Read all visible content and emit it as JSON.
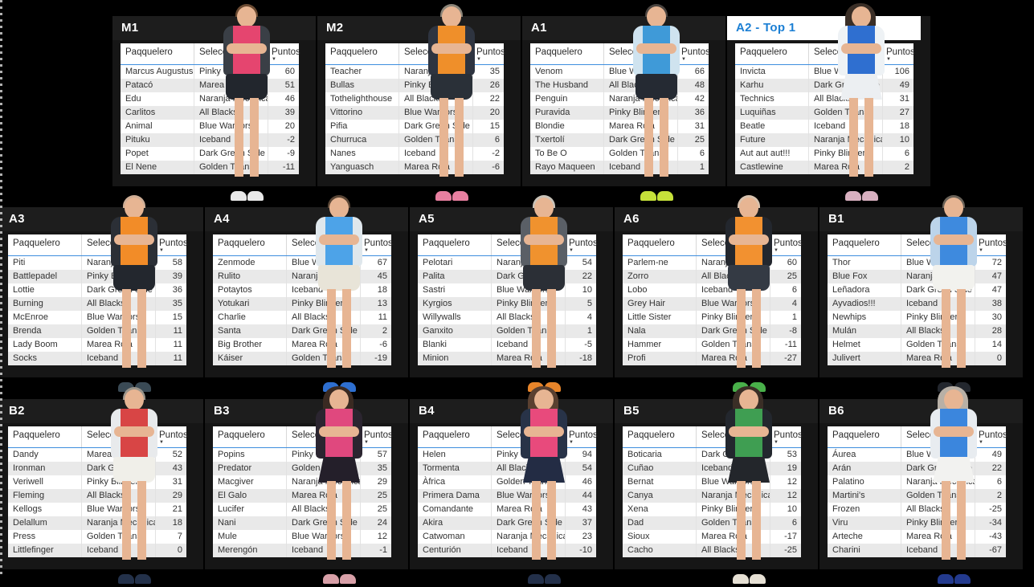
{
  "columns": [
    "Paqquelero",
    "Selección",
    "Puntos"
  ],
  "sort_icon": "▼",
  "colors": {
    "background": "#000000",
    "panel": "#161616",
    "highlight_title_bg": "#ffffff",
    "highlight_title_text": "#1b7fd4",
    "header_underline": "#3d8ede",
    "row_alt": "#e9e9e9"
  },
  "groups": [
    {
      "id": "M1",
      "title": "M1",
      "highlighted": false,
      "photo": {
        "shirt": "#e5456f",
        "sleeve": "#3a3f46",
        "bottom": "#22262d",
        "shoe": "#e9e9e9",
        "hair": "#6a4a32",
        "female": false
      },
      "rows": [
        [
          "Marcus Augustus",
          "Pinky Blinders",
          60
        ],
        [
          "Patacó",
          "Marea Roja",
          51
        ],
        [
          "Edu",
          "Naranja Mecánica",
          46
        ],
        [
          "Carlitos",
          "All Blacks",
          39
        ],
        [
          "Animal",
          "Blue Warriors",
          20
        ],
        [
          "Pituku",
          "Iceband",
          -2
        ],
        [
          "Popet",
          "Dark Green Side",
          -9
        ],
        [
          "El Nene",
          "Golden Titans",
          -11
        ]
      ]
    },
    {
      "id": "M2",
      "title": "M2",
      "highlighted": false,
      "photo": {
        "shirt": "#ef8f2a",
        "sleeve": "#2e3440",
        "bottom": "#2a3038",
        "shoe": "#e87fa0",
        "hair": "#8a8478",
        "female": false
      },
      "rows": [
        [
          "Teacher",
          "Naranja Mecánica",
          35
        ],
        [
          "Bullas",
          "Pinky Blinders",
          26
        ],
        [
          "Tothelighthouse",
          "All Blacks",
          22
        ],
        [
          "Vittorino",
          "Blue Warriors",
          20
        ],
        [
          "Pifia",
          "Dark Green Side",
          15
        ],
        [
          "Churruca",
          "Golden Titans",
          6
        ],
        [
          "Nanes",
          "Iceband",
          -2
        ],
        [
          "Yanguasch",
          "Marea Roja",
          -6
        ]
      ]
    },
    {
      "id": "A1",
      "title": "A1",
      "highlighted": false,
      "photo": {
        "shirt": "#3f9ad8",
        "sleeve": "#cfe3ef",
        "bottom": "#252a33",
        "shoe": "#c6e13a",
        "hair": "#4a4440",
        "female": false
      },
      "rows": [
        [
          "Venom",
          "Blue Warriors",
          66
        ],
        [
          "The Husband",
          "All Blacks",
          48
        ],
        [
          "Penguin",
          "Naranja Mecánica",
          42
        ],
        [
          "Puravida",
          "Pinky Blinders",
          36
        ],
        [
          "Blondie",
          "Marea Roja",
          31
        ],
        [
          "Txertolí",
          "Dark Green Side",
          25
        ],
        [
          "To Be O",
          "Golden Titans",
          6
        ],
        [
          "Rayo Maqueen",
          "Iceband",
          1
        ]
      ]
    },
    {
      "id": "A2",
      "title": "A2 - Top 1",
      "highlighted": true,
      "photo": {
        "shirt": "#2f6fd0",
        "sleeve": "#eef2f5",
        "bottom": "#eceff2",
        "shoe": "#d8b0c0",
        "hair": "#3a2e26",
        "female": true
      },
      "rows": [
        [
          "Invicta",
          "Blue Warriors",
          106
        ],
        [
          "Karhu",
          "Dark Green Side",
          49
        ],
        [
          "Technics",
          "All Blacks",
          31
        ],
        [
          "Luquiñas",
          "Golden Titans",
          27
        ],
        [
          "Beatle",
          "Iceband",
          18
        ],
        [
          "Future",
          "Naranja Mecánica",
          10
        ],
        [
          "Aut aut aut!!!",
          "Pinky Blinders",
          6
        ],
        [
          "Castlewine",
          "Marea Roja",
          2
        ]
      ]
    },
    {
      "id": "A3",
      "title": "A3",
      "highlighted": false,
      "photo": {
        "shirt": "#f28c28",
        "sleeve": "#2b2f36",
        "bottom": "#23272e",
        "shoe": "#3a4a55",
        "hair": "#cfae96",
        "female": false
      },
      "rows": [
        [
          "Piti",
          "Naranja Mecánica",
          58
        ],
        [
          "Battlepadel",
          "Pinky Blinders",
          39
        ],
        [
          "Lottie",
          "Dark Green Side",
          36
        ],
        [
          "Burning",
          "All Blacks",
          35
        ],
        [
          "McEnroe",
          "Blue Warriors",
          15
        ],
        [
          "Brenda",
          "Golden Titans",
          11
        ],
        [
          "Lady Boom",
          "Marea Roja",
          11
        ],
        [
          "Socks",
          "Iceband",
          11
        ]
      ]
    },
    {
      "id": "A4",
      "title": "A4",
      "highlighted": false,
      "photo": {
        "shirt": "#4da3e8",
        "sleeve": "#dfe7ec",
        "bottom": "#e8e4d8",
        "shoe": "#2e6fd0",
        "hair": "#5a4636",
        "female": false
      },
      "rows": [
        [
          "Zenmode",
          "Blue Warriors",
          67
        ],
        [
          "Rulito",
          "Naranja Mecánica",
          45
        ],
        [
          "Potaytos",
          "Iceband",
          18
        ],
        [
          "Yotukari",
          "Pinky Blinders",
          13
        ],
        [
          "Charlie",
          "All Blacks",
          11
        ],
        [
          "Santa",
          "Dark Green Side",
          2
        ],
        [
          "Big Brother",
          "Marea Roja",
          -6
        ],
        [
          "Káiser",
          "Golden Titans",
          -19
        ]
      ]
    },
    {
      "id": "A5",
      "title": "A5",
      "highlighted": false,
      "photo": {
        "shirt": "#f0922e",
        "sleeve": "#5a5f66",
        "bottom": "#2b2f36",
        "shoe": "#e8852a",
        "hair": "#c9c2b8",
        "female": false
      },
      "rows": [
        [
          "Pelotari",
          "Naranja Mecánica",
          54
        ],
        [
          "Palita",
          "Dark Green Side",
          22
        ],
        [
          "Sastri",
          "Blue Warriors",
          10
        ],
        [
          "Kyrgios",
          "Pinky Blinders",
          5
        ],
        [
          "Willywalls",
          "All Blacks",
          4
        ],
        [
          "Ganxito",
          "Golden Titans",
          1
        ],
        [
          "Blanki",
          "Iceband",
          -5
        ],
        [
          "Minion",
          "Marea Roja",
          -18
        ]
      ]
    },
    {
      "id": "A6",
      "title": "A6",
      "highlighted": false,
      "photo": {
        "shirt": "#f29130",
        "sleeve": "#23272e",
        "bottom": "#343a44",
        "shoe": "#49b04a",
        "hair": "#d8c2ae",
        "female": false
      },
      "rows": [
        [
          "Parlem-ne",
          "Naranja Mecánica",
          60
        ],
        [
          "Zorro",
          "All Blacks",
          25
        ],
        [
          "Lobo",
          "Iceband",
          6
        ],
        [
          "Grey Hair",
          "Blue Warriors",
          4
        ],
        [
          "Little Sister",
          "Pinky Blinders",
          1
        ],
        [
          "Nala",
          "Dark Green Side",
          -8
        ],
        [
          "Hammer",
          "Golden Titans",
          -11
        ],
        [
          "Profi",
          "Marea Roja",
          -27
        ]
      ]
    },
    {
      "id": "B1",
      "title": "B1",
      "highlighted": false,
      "photo": {
        "shirt": "#3e8ade",
        "sleeve": "#bcd4ea",
        "bottom": "#f2f2ee",
        "shoe": "#23272e",
        "hair": "#6a6258",
        "female": false
      },
      "rows": [
        [
          "Thor",
          "Blue Warriors",
          72
        ],
        [
          "Blue Fox",
          "Naranja Mecánica",
          47
        ],
        [
          "Leñadora",
          "Dark Green Side",
          47
        ],
        [
          "Ayvadios!!!",
          "Iceband",
          38
        ],
        [
          "Newhips",
          "Pinky Blinders",
          30
        ],
        [
          "Mulán",
          "All Blacks",
          28
        ],
        [
          "Helmet",
          "Golden Titans",
          14
        ],
        [
          "Julivert",
          "Marea Roja",
          0
        ]
      ]
    },
    {
      "id": "B2",
      "title": "B2",
      "highlighted": false,
      "photo": {
        "shirt": "#d84545",
        "sleeve": "#e8eaec",
        "bottom": "#f0efe9",
        "shoe": "#23314a",
        "hair": "#9a948a",
        "female": false
      },
      "rows": [
        [
          "Dandy",
          "Marea Roja",
          52
        ],
        [
          "Ironman",
          "Dark Green Side",
          43
        ],
        [
          "Veriwell",
          "Pinky Blinders",
          31
        ],
        [
          "Fleming",
          "All Blacks",
          29
        ],
        [
          "Kellogs",
          "Blue Warriors",
          21
        ],
        [
          "Delallum",
          "Naranja Mecánica",
          18
        ],
        [
          "Press",
          "Golden Titans",
          7
        ],
        [
          "Littlefinger",
          "Iceband",
          0
        ]
      ]
    },
    {
      "id": "B3",
      "title": "B3",
      "highlighted": false,
      "photo": {
        "shirt": "#e0487e",
        "sleeve": "#2b2530",
        "bottom": "#241f2a",
        "shoe": "#d8a0a8",
        "hair": "#3a2a22",
        "female": true
      },
      "rows": [
        [
          "Popins",
          "Pinky Blinders",
          57
        ],
        [
          "Predator",
          "Golden Titans",
          35
        ],
        [
          "Macgiver",
          "Naranja Mecánica",
          29
        ],
        [
          "El Galo",
          "Marea Roja",
          25
        ],
        [
          "Lucifer",
          "All Blacks",
          25
        ],
        [
          "Nani",
          "Dark Green Side",
          24
        ],
        [
          "Mule",
          "Blue Warriors",
          12
        ],
        [
          "Merengón",
          "Iceband",
          -1
        ]
      ]
    },
    {
      "id": "B4",
      "title": "B4",
      "highlighted": false,
      "photo": {
        "shirt": "#e84a7c",
        "sleeve": "#283348",
        "bottom": "#232c44",
        "shoe": "#23304a",
        "hair": "#5a4030",
        "female": true
      },
      "rows": [
        [
          "Helen",
          "Pinky Blinders",
          94
        ],
        [
          "Tormenta",
          "All Blacks",
          54
        ],
        [
          "Àfrica",
          "Golden Titans",
          46
        ],
        [
          "Primera Dama",
          "Blue Warriors",
          44
        ],
        [
          "Comandante",
          "Marea Roja",
          43
        ],
        [
          "Akira",
          "Dark Green Side",
          37
        ],
        [
          "Catwoman",
          "Naranja Mecánica",
          23
        ],
        [
          "Centurión",
          "Iceband",
          -10
        ]
      ]
    },
    {
      "id": "B5",
      "title": "B5",
      "highlighted": false,
      "photo": {
        "shirt": "#3f9e52",
        "sleeve": "#23272e",
        "bottom": "#23262b",
        "shoe": "#e6e0d4",
        "hair": "#3a2e26",
        "female": true
      },
      "rows": [
        [
          "Boticaria",
          "Dark Green Side",
          53
        ],
        [
          "Cuñao",
          "Iceband",
          19
        ],
        [
          "Bernat",
          "Blue Warriors",
          12
        ],
        [
          "Canya",
          "Naranja Mecánica",
          12
        ],
        [
          "Xena",
          "Pinky Blinders",
          10
        ],
        [
          "Dad",
          "Golden Titans",
          6
        ],
        [
          "Sioux",
          "Marea Roja",
          -17
        ],
        [
          "Cacho",
          "All Blacks",
          -25
        ]
      ]
    },
    {
      "id": "B6",
      "title": "B6",
      "highlighted": false,
      "photo": {
        "shirt": "#3b86dd",
        "sleeve": "#e8ecf0",
        "bottom": "#f2f2f0",
        "shoe": "#233a8e",
        "hair": "#b8b0a6",
        "female": true
      },
      "rows": [
        [
          "Áurea",
          "Blue Warriors",
          49
        ],
        [
          "Arán",
          "Dark Green Side",
          22
        ],
        [
          "Palatino",
          "Naranja Mecánica",
          6
        ],
        [
          "Martini's",
          "Golden Titans",
          2
        ],
        [
          "Frozen",
          "All Blacks",
          -25
        ],
        [
          "Viru",
          "Pinky Blinders",
          -34
        ],
        [
          "Arteche",
          "Marea Roja",
          -43
        ],
        [
          "Charini",
          "Iceband",
          -67
        ]
      ]
    }
  ]
}
